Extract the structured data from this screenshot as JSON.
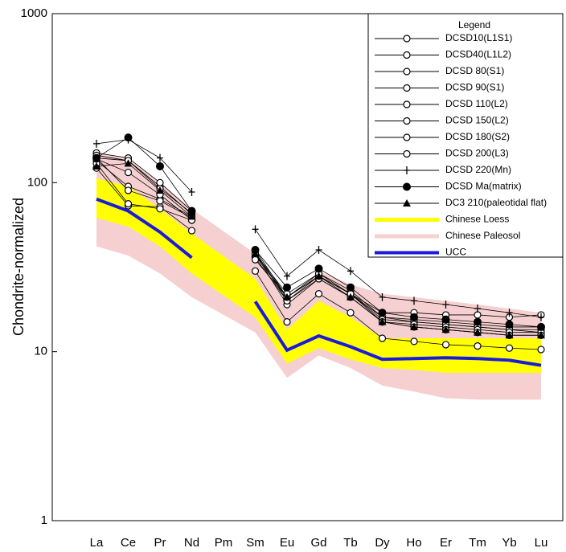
{
  "chart_data": {
    "type": "line",
    "y_label": "Chondrite-normalized",
    "log_scale": true,
    "ylim": [
      1,
      1000
    ],
    "yticks": [
      1,
      10,
      100,
      1000
    ],
    "legend_title": "Legend",
    "categories": [
      "La",
      "Ce",
      "Pr",
      "Nd",
      "Pm",
      "Sm",
      "Eu",
      "Gd",
      "Tb",
      "Dy",
      "Ho",
      "Er",
      "Tm",
      "Yb",
      "Lu"
    ],
    "bands": [
      {
        "name": "Chinese Paleosol",
        "color": "#f6d0d0",
        "high": [
          150,
          140,
          100,
          70,
          null,
          38,
          19,
          30,
          25,
          22,
          21,
          20,
          19,
          18,
          17
        ],
        "low": [
          42,
          37,
          29,
          21,
          null,
          13,
          7,
          9.5,
          8,
          6.3,
          5.8,
          5.3,
          5.2,
          5.2,
          5.2
        ]
      },
      {
        "name": "Chinese Loess",
        "color": "#ffff00",
        "high": [
          106,
          95,
          70,
          50,
          null,
          27,
          13.5,
          20,
          16,
          12,
          12,
          12,
          12,
          12,
          12
        ],
        "low": [
          62,
          55,
          42,
          29,
          null,
          16,
          8.5,
          10.5,
          9,
          8,
          7.8,
          7.5,
          7.5,
          7.5,
          7.5
        ]
      }
    ],
    "series": [
      {
        "name": "DCSD10(L1S1)",
        "color": "#000000",
        "marker": "circle-open",
        "values": [
          122,
          73,
          72,
          52,
          null,
          30,
          15,
          22,
          17,
          12,
          11.5,
          11,
          10.8,
          10.5,
          10.3
        ]
      },
      {
        "name": "DCSD40(L1L2)",
        "color": "#000000",
        "marker": "circle-open",
        "values": [
          140,
          135,
          95,
          65,
          null,
          38,
          19,
          27,
          21,
          15,
          14,
          13.5,
          13,
          12.5,
          12.5
        ]
      },
      {
        "name": "DCSD 80(S1)",
        "color": "#000000",
        "marker": "circle-open",
        "values": [
          150,
          140,
          100,
          68,
          null,
          40,
          21,
          29,
          23,
          16,
          15.5,
          15,
          14.5,
          14,
          14
        ]
      },
      {
        "name": "DCSD 90(S1)",
        "color": "#000000",
        "marker": "circle-open",
        "values": [
          145,
          135,
          92,
          66,
          null,
          39,
          20,
          28,
          22,
          16,
          15,
          14.5,
          14,
          13.5,
          13
        ]
      },
      {
        "name": "DCSD 110(L2)",
        "color": "#000000",
        "marker": "circle-open",
        "values": [
          135,
          95,
          80,
          63,
          null,
          37,
          21,
          28,
          22,
          15.5,
          15,
          14.5,
          14,
          13.5,
          13.5
        ]
      },
      {
        "name": "DCSD 150(L2)",
        "color": "#000000",
        "marker": "circle-open",
        "values": [
          140,
          90,
          78,
          62,
          null,
          36,
          20,
          27,
          21,
          15,
          14.5,
          14,
          13.5,
          13,
          13
        ]
      },
      {
        "name": "DCSD 180(S2)",
        "color": "#000000",
        "marker": "circle-open",
        "values": [
          130,
          75,
          70,
          60,
          null,
          35,
          21,
          28,
          22,
          17,
          17,
          16.5,
          16.5,
          16,
          16.5
        ]
      },
      {
        "name": "DCSD 200(L3)",
        "color": "#000000",
        "marker": "circle-open",
        "values": [
          138,
          115,
          85,
          60,
          null,
          38,
          22,
          29,
          22,
          15,
          14,
          13.5,
          13,
          12.5,
          12.5
        ]
      },
      {
        "name": "DCSD 220(Mn)",
        "color": "#000000",
        "marker": "plus",
        "values": [
          170,
          180,
          140,
          88,
          null,
          53,
          28,
          40,
          30,
          21,
          20,
          19,
          18,
          17,
          16
        ]
      },
      {
        "name": "DCSD Ma(matrix)",
        "color": "#000000",
        "marker": "circle-filled",
        "values": [
          140,
          185,
          125,
          68,
          null,
          40,
          24,
          31,
          24,
          17,
          16,
          15.5,
          15,
          14.5,
          14
        ]
      },
      {
        "name": "DC3 210(paleotidal flat)",
        "color": "#000000",
        "marker": "triangle",
        "values": [
          125,
          130,
          90,
          63,
          null,
          38,
          21,
          28,
          21,
          15,
          14,
          13.5,
          13,
          12.5,
          12.5
        ]
      },
      {
        "name": "UCC",
        "color": "#1a1adc",
        "marker": "none",
        "width": 4,
        "values": [
          80,
          68,
          51,
          36,
          null,
          19.8,
          10.2,
          12.4,
          10.7,
          9.0,
          9.1,
          9.2,
          9.1,
          8.9,
          8.3
        ]
      }
    ]
  }
}
